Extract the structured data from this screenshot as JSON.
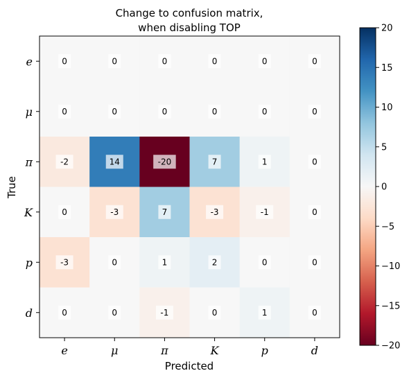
{
  "chart_data": {
    "type": "heatmap",
    "title": [
      "Change to confusion matrix,",
      "when disabling TOP"
    ],
    "xlabel": "Predicted",
    "ylabel": "True",
    "x_categories": [
      "e",
      "μ",
      "π",
      "K",
      "p",
      "d"
    ],
    "y_categories": [
      "e",
      "μ",
      "π",
      "K",
      "p",
      "d"
    ],
    "values": [
      [
        0,
        0,
        0,
        0,
        0,
        0
      ],
      [
        0,
        0,
        0,
        0,
        0,
        0
      ],
      [
        -2,
        14,
        -20,
        7,
        1,
        0
      ],
      [
        0,
        -3,
        7,
        -3,
        -1,
        0
      ],
      [
        -3,
        0,
        1,
        2,
        0,
        0
      ],
      [
        0,
        0,
        -1,
        0,
        1,
        0
      ]
    ],
    "colormap": "RdBu",
    "vmin": -20,
    "vmax": 20,
    "colorbar_ticks": [
      -20,
      -15,
      -10,
      -5,
      0,
      5,
      10,
      15,
      20
    ],
    "colorbar_tick_labels": [
      "−20",
      "−15",
      "−10",
      "−5",
      "0",
      "5",
      "10",
      "15",
      "20"
    ],
    "grid": false
  }
}
